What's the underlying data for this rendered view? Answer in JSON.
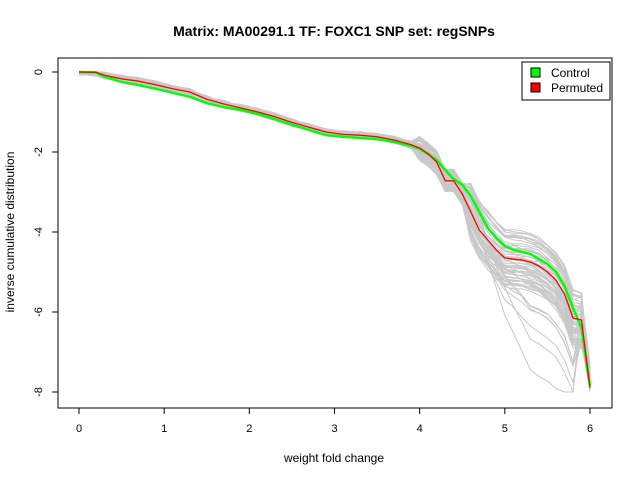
{
  "chart_data": {
    "type": "line",
    "title": "Matrix: MA00291.1 TF: FOXC1 SNP set: regSNPs",
    "xlabel": "weight fold change",
    "ylabel": "inverse cumulative distribution",
    "xlim": [
      0,
      6
    ],
    "ylim": [
      -8,
      0
    ],
    "xticks": [
      0,
      1,
      2,
      3,
      4,
      5,
      6
    ],
    "yticks": [
      0,
      -2,
      -4,
      -6,
      -8
    ],
    "grid": false,
    "legend_position": "top-right",
    "x": [
      0,
      0.2,
      0.3,
      0.5,
      0.7,
      0.9,
      1.1,
      1.3,
      1.5,
      1.7,
      1.9,
      2.1,
      2.3,
      2.5,
      2.7,
      2.9,
      3.1,
      3.3,
      3.5,
      3.7,
      3.9,
      4.0,
      4.1,
      4.2,
      4.3,
      4.4,
      4.5,
      4.6,
      4.7,
      4.8,
      4.9,
      5.0,
      5.1,
      5.2,
      5.3,
      5.4,
      5.5,
      5.6,
      5.7,
      5.8,
      5.9,
      6.0
    ],
    "series": [
      {
        "name": "Control",
        "color": "#00ff00",
        "values": [
          0,
          -0.01,
          -0.12,
          -0.25,
          -0.33,
          -0.42,
          -0.52,
          -0.62,
          -0.78,
          -0.88,
          -0.95,
          -1.05,
          -1.18,
          -1.32,
          -1.45,
          -1.58,
          -1.62,
          -1.65,
          -1.68,
          -1.75,
          -1.85,
          -1.92,
          -2.05,
          -2.2,
          -2.45,
          -2.68,
          -2.82,
          -3.1,
          -3.5,
          -3.9,
          -4.15,
          -4.35,
          -4.45,
          -4.5,
          -4.55,
          -4.68,
          -4.8,
          -5.0,
          -5.35,
          -5.9,
          -6.4,
          -7.85
        ]
      },
      {
        "name": "Permuted",
        "color": "#ff0000",
        "values": [
          0,
          -0.01,
          -0.08,
          -0.17,
          -0.23,
          -0.32,
          -0.42,
          -0.5,
          -0.68,
          -0.8,
          -0.9,
          -1.0,
          -1.12,
          -1.26,
          -1.38,
          -1.5,
          -1.56,
          -1.58,
          -1.62,
          -1.7,
          -1.82,
          -1.9,
          -2.05,
          -2.25,
          -2.72,
          -2.72,
          -3.05,
          -3.5,
          -3.95,
          -4.2,
          -4.45,
          -4.65,
          -4.68,
          -4.7,
          -4.75,
          -4.85,
          -5.0,
          -5.2,
          -5.55,
          -6.15,
          -6.2,
          -7.9
        ]
      }
    ],
    "background_lines": {
      "color": "#c8c8c8",
      "count": 60
    }
  }
}
